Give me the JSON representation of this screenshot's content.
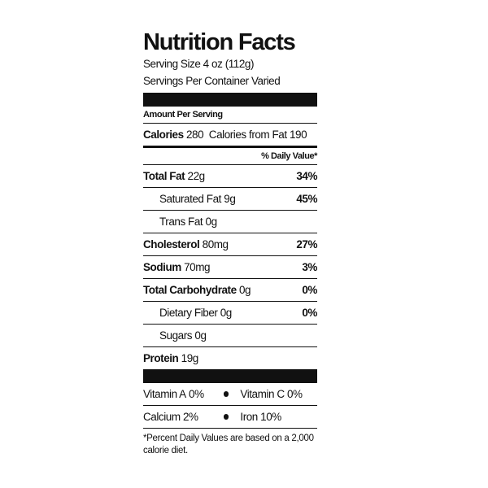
{
  "header": {
    "title": "Nutrition Facts",
    "serving_size": "Serving Size 4 oz (112g)",
    "servings_per_container": "Servings Per Container Varied"
  },
  "amount_per_serving": "Amount Per Serving",
  "calories": {
    "label": "Calories",
    "value": "280",
    "from_fat": "Calories from Fat 190"
  },
  "daily_value_header": "% Daily Value*",
  "nutrients": [
    {
      "name": "Total Fat",
      "amount": "22g",
      "dv": "34%",
      "sub": [
        {
          "name": "Saturated Fat",
          "amount": "9g",
          "dv": "45%"
        },
        {
          "name": "Trans Fat",
          "amount": "0g"
        }
      ]
    },
    {
      "name": "Cholesterol",
      "amount": "80mg",
      "dv": "27%"
    },
    {
      "name": "Sodium",
      "amount": "70mg",
      "dv": "3%"
    },
    {
      "name": "Total Carbohydrate",
      "amount": "0g",
      "dv": "0%",
      "sub": [
        {
          "name": "Dietary Fiber",
          "amount": "0g",
          "dv": "0%"
        },
        {
          "name": "Sugars",
          "amount": "0g"
        }
      ]
    },
    {
      "name": "Protein",
      "amount": "19g"
    }
  ],
  "vitamins": [
    [
      {
        "name": "Vitamin A",
        "dv": "0%"
      },
      {
        "name": "Vitamin C",
        "dv": "0%"
      }
    ],
    [
      {
        "name": "Calcium",
        "dv": "2%"
      },
      {
        "name": "Iron",
        "dv": "10%"
      }
    ]
  ],
  "footnote": "*Percent Daily Values are based on a 2,000 calorie diet."
}
